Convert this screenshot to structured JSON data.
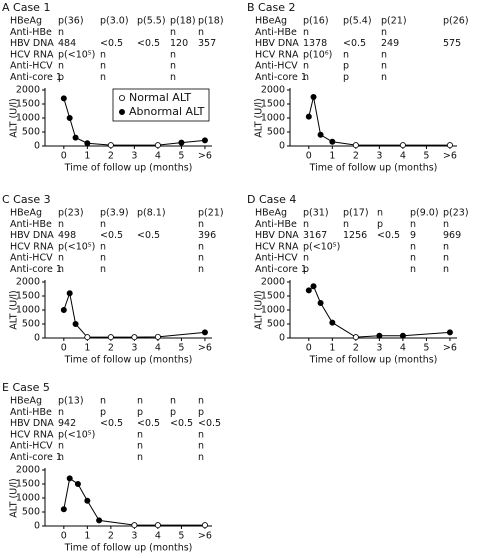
{
  "chart_data": [
    {
      "type": "line",
      "title": "A Case 1",
      "table": {
        "rows": [
          {
            "label": "HBeAg",
            "cells": [
              "p(36)",
              "p(3.0)",
              "p(5.5)",
              "p(18)",
              "p(18)"
            ]
          },
          {
            "label": "Anti-HBe",
            "cells": [
              "n",
              null,
              null,
              "n",
              "n"
            ]
          },
          {
            "label": "HBV DNA",
            "cells": [
              "484",
              "<0.5",
              "<0.5",
              "120",
              "357"
            ]
          },
          {
            "label": "HCV RNA",
            "cells": [
              "p(<10⁵)",
              "n",
              null,
              "n",
              null
            ]
          },
          {
            "label": "Anti-HCV",
            "cells": [
              "n",
              "n",
              null,
              "n",
              null
            ]
          },
          {
            "label": "Anti-core 1",
            "cells": [
              "p",
              "n",
              null,
              "n",
              null
            ]
          }
        ]
      },
      "x": [
        0,
        0.25,
        0.5,
        1,
        2,
        4,
        5,
        6
      ],
      "values": [
        1700,
        1000,
        300,
        100,
        30,
        30,
        120,
        200
      ],
      "abnormal": [
        true,
        true,
        true,
        true,
        false,
        false,
        true,
        true
      ],
      "xlim": [
        -0.8,
        6.3
      ],
      "xticks": [
        0,
        1,
        2,
        3,
        4,
        5,
        {
          "value": 6,
          "label": ">6"
        }
      ],
      "ylim": [
        0,
        2000
      ],
      "yticks": [
        0,
        500,
        1000,
        1500,
        2000
      ],
      "xlabel": "Time of follow up (months)",
      "ylabel": "ALT (U/l)",
      "legend": [
        "Normal ALT",
        "Abnormal ALT"
      ]
    },
    {
      "type": "line",
      "title": "B Case 2",
      "table": {
        "rows": [
          {
            "label": "HBeAg",
            "cells": [
              "p(16)",
              "p(5.4)",
              "p(21)",
              "p(26)"
            ]
          },
          {
            "label": "Anti-HBe",
            "cells": [
              "n",
              null,
              "n",
              null
            ]
          },
          {
            "label": "HBV DNA",
            "cells": [
              "1378",
              "<0.5",
              "249",
              "575"
            ]
          },
          {
            "label": "HCV RNA",
            "cells": [
              "p(10⁶)",
              "n",
              "n",
              null
            ]
          },
          {
            "label": "Anti-HCV",
            "cells": [
              "n",
              "p",
              "n",
              null
            ]
          },
          {
            "label": "Anti-core 1",
            "cells": [
              "n",
              "p",
              "n",
              null
            ]
          }
        ]
      },
      "x": [
        0,
        0.2,
        0.5,
        1,
        2,
        4,
        6
      ],
      "values": [
        1050,
        1750,
        400,
        150,
        30,
        30,
        30
      ],
      "abnormal": [
        true,
        true,
        true,
        true,
        false,
        false,
        false
      ],
      "xlim": [
        -0.8,
        6.3
      ],
      "xticks": [
        0,
        1,
        2,
        3,
        4,
        5,
        {
          "value": 6,
          "label": ">6"
        }
      ],
      "ylim": [
        0,
        2000
      ],
      "yticks": [
        0,
        500,
        1000,
        1500,
        2000
      ],
      "xlabel": "Time of follow up (months)",
      "ylabel": "ALT (U/l)"
    },
    {
      "type": "line",
      "title": "C Case 3",
      "table": {
        "rows": [
          {
            "label": "HBeAg",
            "cells": [
              "p(23)",
              "p(3.9)",
              "p(8.1)",
              "p(21)"
            ]
          },
          {
            "label": "Anti-HBe",
            "cells": [
              "n",
              "n",
              null,
              "n"
            ]
          },
          {
            "label": "HBV DNA",
            "cells": [
              "498",
              "<0.5",
              "<0.5",
              "396"
            ]
          },
          {
            "label": "HCV RNA",
            "cells": [
              "p(<10⁵)",
              "n",
              null,
              "n"
            ]
          },
          {
            "label": "Anti-HCV",
            "cells": [
              "n",
              "n",
              null,
              "n"
            ]
          },
          {
            "label": "Anti-core 1",
            "cells": [
              "n",
              "n",
              null,
              "n"
            ]
          }
        ]
      },
      "x": [
        0,
        0.25,
        0.5,
        1,
        2,
        3,
        4,
        6
      ],
      "values": [
        1000,
        1600,
        500,
        30,
        30,
        30,
        40,
        200
      ],
      "abnormal": [
        true,
        true,
        true,
        false,
        false,
        false,
        false,
        true
      ],
      "xlim": [
        -0.8,
        6.3
      ],
      "xticks": [
        0,
        1,
        2,
        3,
        4,
        5,
        {
          "value": 6,
          "label": ">6"
        }
      ],
      "ylim": [
        0,
        2000
      ],
      "yticks": [
        0,
        500,
        1000,
        1500,
        2000
      ],
      "xlabel": "Time of follow up (months)",
      "ylabel": "ALT (U/l)"
    },
    {
      "type": "line",
      "title": "D Case 4",
      "table": {
        "rows": [
          {
            "label": "HBeAg",
            "cells": [
              "p(31)",
              "p(17)",
              "n",
              "p(9.0)",
              "p(23)"
            ]
          },
          {
            "label": "Anti-HBe",
            "cells": [
              "n",
              "n",
              "p",
              "n",
              "n"
            ]
          },
          {
            "label": "HBV DNA",
            "cells": [
              "3167",
              "1256",
              "<0.5",
              "9",
              "969"
            ]
          },
          {
            "label": "HCV RNA",
            "cells": [
              "p(<10⁵)",
              null,
              null,
              "n",
              "n"
            ]
          },
          {
            "label": "Anti-HCV",
            "cells": [
              "n",
              null,
              null,
              "n",
              "n"
            ]
          },
          {
            "label": "Anti-core 1",
            "cells": [
              "p",
              null,
              null,
              "n",
              "n"
            ]
          }
        ]
      },
      "x": [
        0,
        0.2,
        0.5,
        1,
        2,
        3,
        4,
        6
      ],
      "values": [
        1700,
        1850,
        1250,
        550,
        30,
        80,
        80,
        200
      ],
      "abnormal": [
        true,
        true,
        true,
        true,
        false,
        true,
        true,
        true
      ],
      "xlim": [
        -0.8,
        6.3
      ],
      "xticks": [
        0,
        1,
        2,
        3,
        4,
        5,
        {
          "value": 6,
          "label": ">6"
        }
      ],
      "ylim": [
        0,
        2000
      ],
      "yticks": [
        0,
        500,
        1000,
        1500,
        2000
      ],
      "xlabel": "Time of follow up (months)",
      "ylabel": "ALT (U/l)"
    },
    {
      "type": "line",
      "title": "E Case 5",
      "table": {
        "rows": [
          {
            "label": "HBeAg",
            "cells": [
              "p(13)",
              "n",
              "n",
              "n",
              "n"
            ]
          },
          {
            "label": "Anti-HBe",
            "cells": [
              "n",
              "p",
              "p",
              "p",
              "p"
            ]
          },
          {
            "label": "HBV DNA",
            "cells": [
              "942",
              "<0.5",
              "<0.5",
              "<0.5",
              "<0.5"
            ]
          },
          {
            "label": "HCV RNA",
            "cells": [
              "p(<10⁵)",
              null,
              "n",
              null,
              "n"
            ]
          },
          {
            "label": "Anti-HCV",
            "cells": [
              "n",
              null,
              "n",
              null,
              "n"
            ]
          },
          {
            "label": "Anti-core 1",
            "cells": [
              "n",
              null,
              "n",
              null,
              "n"
            ]
          }
        ]
      },
      "x": [
        0,
        0.25,
        0.6,
        1,
        1.5,
        3,
        4,
        6
      ],
      "values": [
        600,
        1700,
        1500,
        900,
        200,
        30,
        30,
        30
      ],
      "abnormal": [
        true,
        true,
        true,
        true,
        true,
        false,
        false,
        false
      ],
      "xlim": [
        -0.8,
        6.3
      ],
      "xticks": [
        0,
        1,
        2,
        3,
        4,
        5,
        {
          "value": 6,
          "label": ">6"
        }
      ],
      "ylim": [
        0,
        2000
      ],
      "yticks": [
        0,
        500,
        1000,
        1500,
        2000
      ],
      "xlabel": "Time of follow up (months)",
      "ylabel": "ALT (U/l)"
    }
  ]
}
